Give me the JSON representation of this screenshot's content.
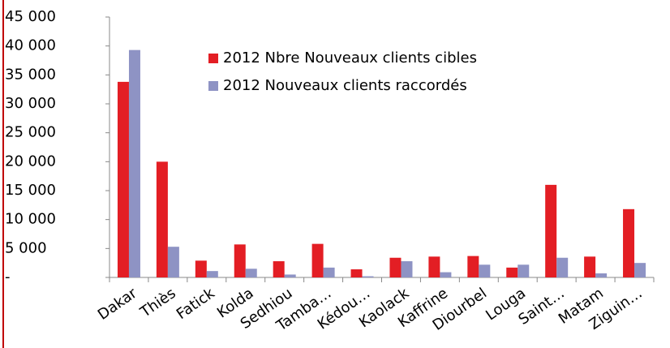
{
  "chart_data": {
    "type": "bar",
    "categories": [
      "Dakar",
      "Thiès",
      "Fatick",
      "Kolda",
      "Sedhiou",
      "Tamba…",
      "Kédou…",
      "Kaolack",
      "Kaffrine",
      "Diourbel",
      "Louga",
      "Saint…",
      "Matam",
      "Ziguin…"
    ],
    "series": [
      {
        "name": "2012 Nbre Nouveaux clients cibles",
        "color": "#e31e24",
        "values": [
          33800,
          20000,
          2900,
          5700,
          2800,
          5800,
          1400,
          3400,
          3600,
          3700,
          1700,
          16000,
          3600,
          11800
        ]
      },
      {
        "name": "2012 Nouveaux clients raccordés",
        "color": "#8e93c4",
        "values": [
          39300,
          5300,
          1100,
          1500,
          500,
          1700,
          200,
          2800,
          900,
          2200,
          2200,
          3400,
          700,
          2500
        ]
      }
    ],
    "ylim": [
      0,
      45000
    ],
    "yticks": [
      {
        "value": 0,
        "label": "-"
      },
      {
        "value": 5000,
        "label": "5 000"
      },
      {
        "value": 10000,
        "label": "10 000"
      },
      {
        "value": 15000,
        "label": "15 000"
      },
      {
        "value": 20000,
        "label": "20 000"
      },
      {
        "value": 25000,
        "label": "25 000"
      },
      {
        "value": 30000,
        "label": "30 000"
      },
      {
        "value": 35000,
        "label": "35 000"
      },
      {
        "value": 40000,
        "label": "40 000"
      },
      {
        "value": 45000,
        "label": "45 000"
      }
    ],
    "legend": "top-left"
  }
}
